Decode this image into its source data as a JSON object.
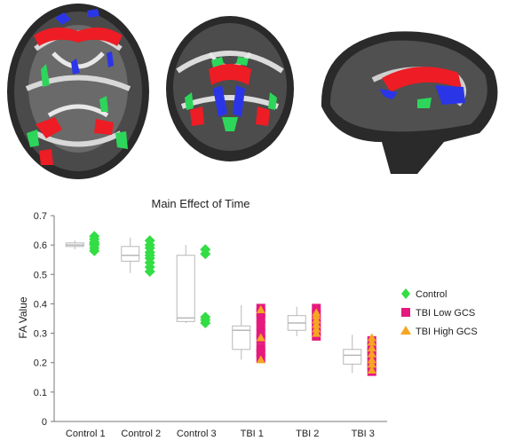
{
  "panels": {
    "axial": "axial-brain-slice",
    "coronal": "coronal-brain-slice",
    "sagittal": "sagittal-brain-slice"
  },
  "colors": {
    "overlay_red": "#ee1c24",
    "overlay_blue": "#2b35e8",
    "overlay_green": "#2dd65a",
    "control": "#33dd44",
    "tbi_low": "#e6197e",
    "tbi_high": "#f5a623",
    "box": "#b8b8b8",
    "axis": "#777777"
  },
  "chart_data": {
    "type": "box",
    "title": "Main Effect of Time",
    "xlabel": "",
    "ylabel": "FA Value",
    "ylim": [
      0,
      0.7
    ],
    "yticks": [
      "0",
      "0.1",
      "0.2",
      "0.3",
      "0.4",
      "0.5",
      "0.6",
      "0.7"
    ],
    "grid": false,
    "legend_position": "right",
    "categories": [
      "Control 1",
      "Control 2",
      "Control 3",
      "TBI 1",
      "TBI 2",
      "TBI 3"
    ],
    "boxes": [
      {
        "category": "Control 1",
        "min": 0.585,
        "q1": 0.595,
        "median": 0.6,
        "q3": 0.607,
        "max": 0.615
      },
      {
        "category": "Control 2",
        "min": 0.505,
        "q1": 0.545,
        "median": 0.565,
        "q3": 0.595,
        "max": 0.625
      },
      {
        "category": "Control 3",
        "min": 0.335,
        "q1": 0.34,
        "median": 0.352,
        "q3": 0.565,
        "max": 0.6
      },
      {
        "category": "TBI 1",
        "min": 0.21,
        "q1": 0.245,
        "median": 0.31,
        "q3": 0.325,
        "max": 0.395
      },
      {
        "category": "TBI 2",
        "min": 0.29,
        "q1": 0.31,
        "median": 0.335,
        "q3": 0.36,
        "max": 0.39
      },
      {
        "category": "TBI 3",
        "min": 0.165,
        "q1": 0.195,
        "median": 0.225,
        "q3": 0.245,
        "max": 0.295
      }
    ],
    "series": [
      {
        "name": "Control",
        "marker": "diamond",
        "points": [
          {
            "category": "Control 1",
            "values": [
              0.58,
              0.59,
              0.6,
              0.605,
              0.61,
              0.62,
              0.63
            ]
          },
          {
            "category": "Control 2",
            "values": [
              0.51,
              0.525,
              0.54,
              0.555,
              0.565,
              0.575,
              0.59,
              0.6,
              0.615
            ]
          },
          {
            "category": "Control 3",
            "values": [
              0.335,
              0.345,
              0.355,
              0.57,
              0.585
            ]
          }
        ]
      },
      {
        "name": "TBI Low GCS",
        "marker": "square",
        "points": [
          {
            "category": "TBI 1",
            "values": [
              0.215,
              0.235,
              0.25,
              0.28,
              0.3,
              0.325,
              0.35,
              0.37,
              0.385
            ]
          },
          {
            "category": "TBI 2",
            "values": [
              0.29,
              0.305,
              0.32,
              0.335,
              0.35,
              0.365,
              0.385
            ]
          },
          {
            "category": "TBI 3",
            "values": [
              0.17,
              0.19,
              0.205,
              0.225,
              0.24,
              0.255,
              0.275
            ]
          }
        ]
      },
      {
        "name": "TBI High GCS",
        "marker": "triangle",
        "points": [
          {
            "category": "TBI 1",
            "values": [
              0.21,
              0.285,
              0.38
            ]
          },
          {
            "category": "TBI 2",
            "values": [
              0.3,
              0.315,
              0.33,
              0.345,
              0.36,
              0.37
            ]
          },
          {
            "category": "TBI 3",
            "values": [
              0.175,
              0.195,
              0.21,
              0.23,
              0.25,
              0.27,
              0.285
            ]
          }
        ]
      }
    ]
  }
}
